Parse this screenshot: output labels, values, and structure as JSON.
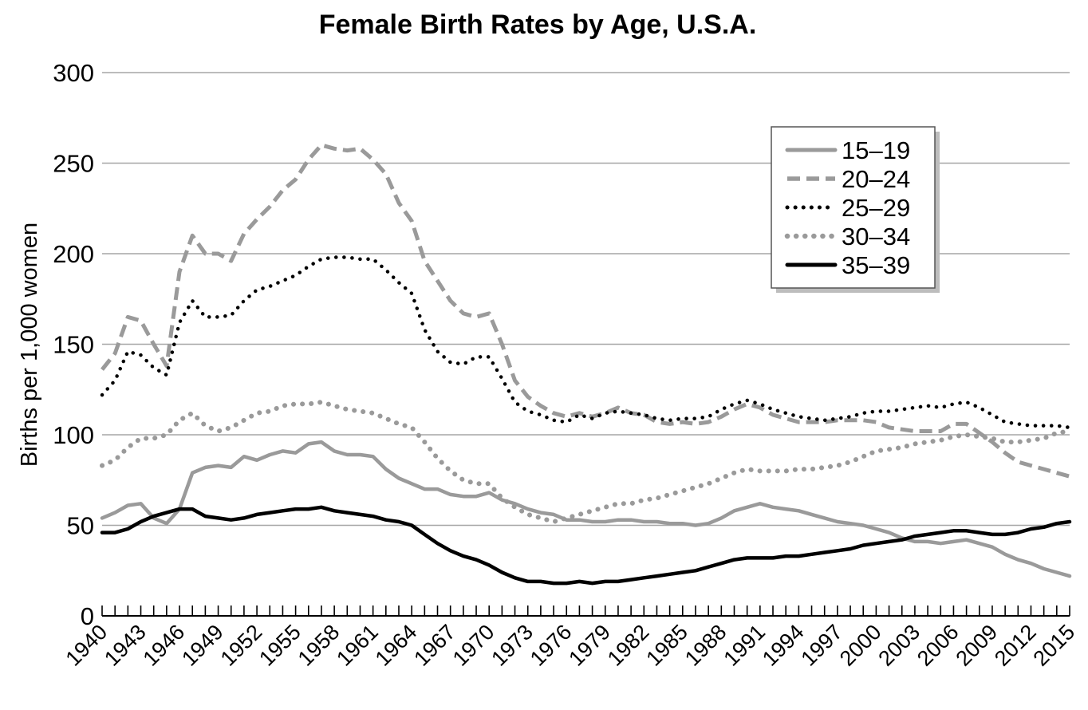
{
  "chart_data": {
    "type": "line",
    "title": "Female Birth Rates by Age, U.S.A.",
    "xlabel": "",
    "ylabel": "Births per 1,000 women",
    "xlim": [
      1940,
      2015
    ],
    "ylim": [
      0,
      300
    ],
    "yticks": [
      "0",
      "50",
      "100",
      "150",
      "200",
      "250",
      "300"
    ],
    "xtick_labels": [
      "1940",
      "1943",
      "1946",
      "1949",
      "1952",
      "1955",
      "1958",
      "1961",
      "1964",
      "1967",
      "1970",
      "1973",
      "1976",
      "1979",
      "1982",
      "1985",
      "1988",
      "1991",
      "1994",
      "1997",
      "2000",
      "2003",
      "2006",
      "2009",
      "2012",
      "2015"
    ],
    "grid": true,
    "legend_position": "top-right",
    "x": [
      1940,
      1941,
      1942,
      1943,
      1944,
      1945,
      1946,
      1947,
      1948,
      1949,
      1950,
      1951,
      1952,
      1953,
      1954,
      1955,
      1956,
      1957,
      1958,
      1959,
      1960,
      1961,
      1962,
      1963,
      1964,
      1965,
      1966,
      1967,
      1968,
      1969,
      1970,
      1971,
      1972,
      1973,
      1974,
      1975,
      1976,
      1977,
      1978,
      1979,
      1980,
      1981,
      1982,
      1983,
      1984,
      1985,
      1986,
      1987,
      1988,
      1989,
      1990,
      1991,
      1992,
      1993,
      1994,
      1995,
      1996,
      1997,
      1998,
      1999,
      2000,
      2001,
      2002,
      2003,
      2004,
      2005,
      2006,
      2007,
      2008,
      2009,
      2010,
      2011,
      2012,
      2013,
      2014,
      2015
    ],
    "series": [
      {
        "name": "15–19",
        "style": "solid-gray",
        "color": "#9a9a9a",
        "values": [
          54,
          57,
          61,
          62,
          54,
          51,
          59,
          79,
          82,
          83,
          82,
          88,
          86,
          89,
          91,
          90,
          95,
          96,
          91,
          89,
          89,
          88,
          81,
          76,
          73,
          70,
          70,
          67,
          66,
          66,
          68,
          64,
          62,
          59,
          57,
          56,
          53,
          53,
          52,
          52,
          53,
          53,
          52,
          52,
          51,
          51,
          50,
          51,
          54,
          58,
          60,
          62,
          60,
          59,
          58,
          56,
          54,
          52,
          51,
          50,
          48,
          46,
          43,
          41,
          41,
          40,
          41,
          42,
          40,
          38,
          34,
          31,
          29,
          26,
          24,
          22
        ]
      },
      {
        "name": "20–24",
        "style": "dashed-gray",
        "color": "#9a9a9a",
        "values": [
          136,
          145,
          165,
          163,
          150,
          138,
          190,
          210,
          200,
          200,
          196,
          211,
          219,
          226,
          235,
          241,
          252,
          260,
          258,
          257,
          258,
          252,
          244,
          228,
          218,
          196,
          185,
          174,
          167,
          165,
          167,
          150,
          130,
          121,
          116,
          112,
          110,
          112,
          110,
          112,
          115,
          112,
          111,
          107,
          106,
          107,
          106,
          107,
          110,
          114,
          117,
          115,
          111,
          109,
          107,
          107,
          107,
          108,
          108,
          108,
          107,
          104,
          103,
          102,
          102,
          102,
          106,
          106,
          101,
          96,
          90,
          85,
          83,
          81,
          79,
          77
        ]
      },
      {
        "name": "25–29",
        "style": "dotted-black",
        "color": "#000000",
        "values": [
          122,
          130,
          146,
          144,
          137,
          133,
          162,
          174,
          165,
          165,
          166,
          174,
          180,
          182,
          185,
          188,
          193,
          197,
          198,
          198,
          197,
          197,
          191,
          184,
          178,
          158,
          146,
          140,
          139,
          143,
          143,
          131,
          118,
          113,
          111,
          108,
          107,
          111,
          109,
          112,
          113,
          112,
          111,
          109,
          108,
          109,
          109,
          110,
          114,
          117,
          119,
          117,
          114,
          112,
          110,
          109,
          108,
          109,
          110,
          112,
          113,
          113,
          114,
          115,
          116,
          115,
          117,
          118,
          115,
          111,
          107,
          106,
          105,
          105,
          105,
          104
        ]
      },
      {
        "name": "30–34",
        "style": "dotted-gray",
        "color": "#9a9a9a",
        "values": [
          83,
          86,
          93,
          98,
          98,
          100,
          108,
          112,
          105,
          102,
          104,
          108,
          112,
          113,
          116,
          117,
          117,
          118,
          116,
          114,
          113,
          112,
          109,
          106,
          104,
          96,
          87,
          80,
          75,
          73,
          73,
          65,
          60,
          56,
          54,
          52,
          54,
          56,
          58,
          60,
          62,
          62,
          64,
          65,
          67,
          69,
          71,
          73,
          76,
          79,
          81,
          80,
          80,
          80,
          81,
          81,
          82,
          83,
          85,
          88,
          91,
          92,
          93,
          95,
          96,
          97,
          99,
          100,
          99,
          98,
          96,
          96,
          97,
          98,
          101,
          102
        ]
      },
      {
        "name": "35–39",
        "style": "solid-black",
        "color": "#000000",
        "values": [
          46,
          46,
          48,
          52,
          55,
          57,
          59,
          59,
          55,
          54,
          53,
          54,
          56,
          57,
          58,
          59,
          59,
          60,
          58,
          57,
          56,
          55,
          53,
          52,
          50,
          45,
          40,
          36,
          33,
          31,
          28,
          24,
          21,
          19,
          19,
          18,
          18,
          19,
          18,
          19,
          19,
          20,
          21,
          22,
          23,
          24,
          25,
          27,
          29,
          31,
          32,
          32,
          32,
          33,
          33,
          34,
          35,
          36,
          37,
          39,
          40,
          41,
          42,
          44,
          45,
          46,
          47,
          47,
          46,
          45,
          45,
          46,
          48,
          49,
          51,
          52
        ]
      }
    ]
  }
}
